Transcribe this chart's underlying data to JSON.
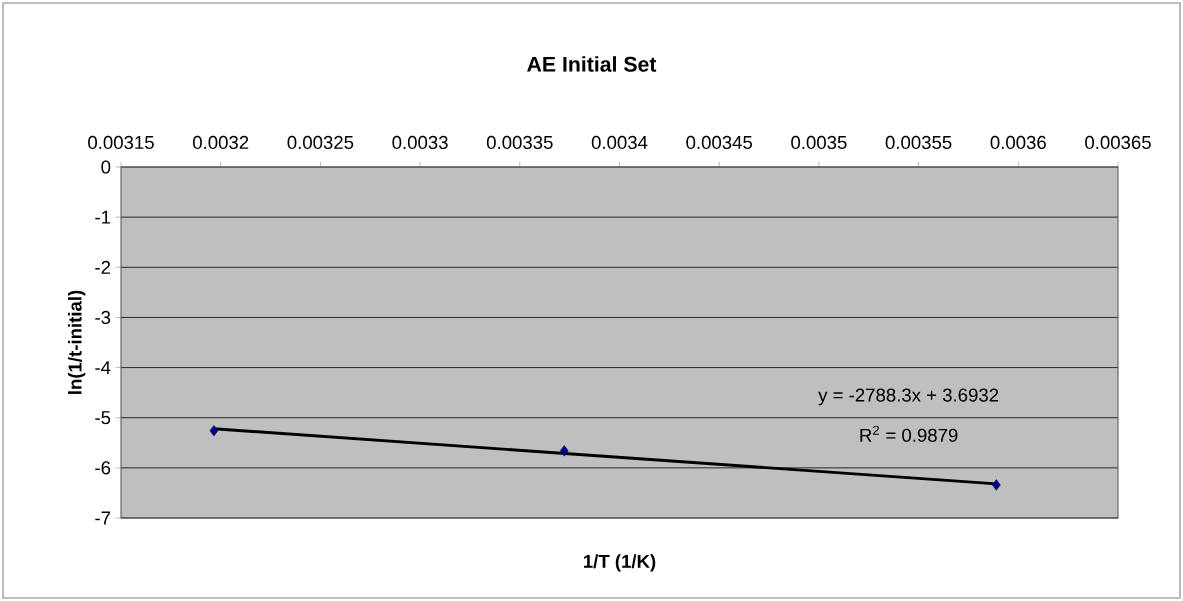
{
  "chart_data": {
    "type": "scatter",
    "title": "AE Initial Set",
    "xlabel": "1/T (1/K)",
    "ylabel": "ln(1/t-initial)",
    "series": [
      {
        "color": "#000080",
        "marker": "diamond",
        "x": [
          0.0031966,
          0.0033723,
          0.003589
        ],
        "values": [
          -5.26,
          -5.66,
          -6.34
        ]
      },
      {
        "type": "line",
        "color": "#000000",
        "marker": "none",
        "x": [
          0.0031966,
          0.003589
        ],
        "values": [
          -5.22,
          -6.32
        ]
      }
    ],
    "xlim": [
      0.00315,
      0.00365
    ],
    "xticks": [
      0.00315,
      0.0032,
      0.00325,
      0.0033,
      0.00335,
      0.0034,
      0.00345,
      0.0035,
      0.00355,
      0.0036,
      0.00365
    ],
    "ylim": [
      -7,
      0
    ],
    "yticks": [
      0,
      -1,
      -2,
      -3,
      -4,
      -5,
      -6,
      -7
    ],
    "grid": "y",
    "annotations": [
      "y = -2788.3x + 3.6932",
      "R$^{2}$ = 0.9879"
    ]
  }
}
